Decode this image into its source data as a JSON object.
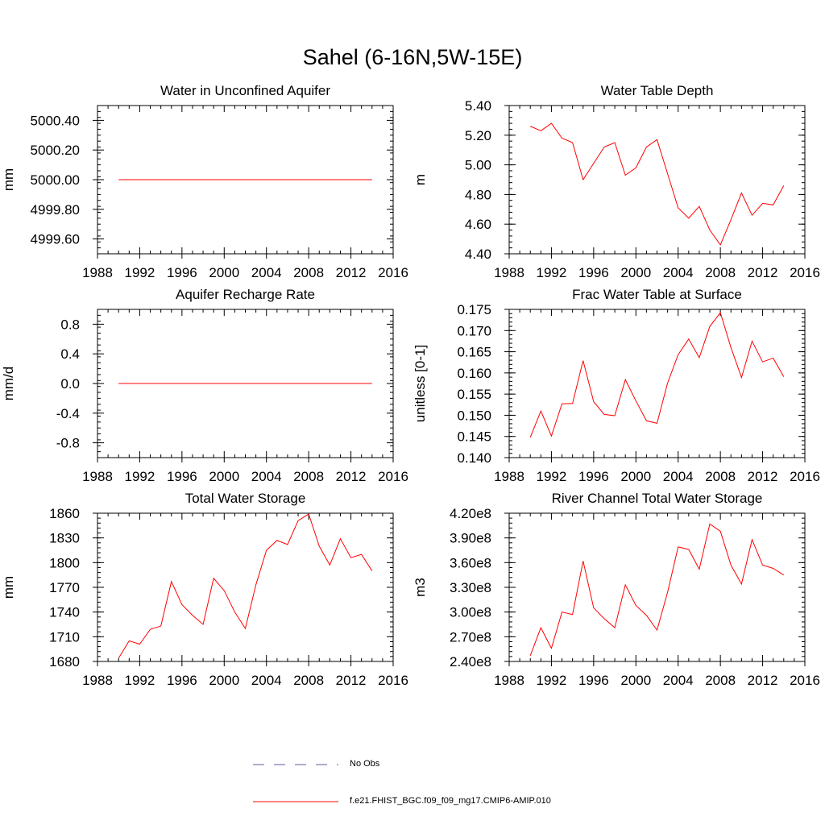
{
  "title": "Sahel (6-16N,5W-15E)",
  "colors": {
    "model": "#ff0000",
    "obs": "#5a5aa0",
    "axis": "#000000"
  },
  "legend": {
    "obs_label": "No Obs",
    "model_label": "f.e21.FHIST_BGC.f09_f09_mg17.CMIP6-AMIP.010"
  },
  "chart_data": [
    {
      "type": "line",
      "title": "Water in Unconfined Aquifer",
      "ylabel": "mm",
      "xlim": [
        1988,
        2016
      ],
      "xticks": [
        "1988",
        "1992",
        "1996",
        "2000",
        "2004",
        "2008",
        "2012",
        "2016"
      ],
      "ylim": [
        4999.5,
        5000.5
      ],
      "yticks": [
        4999.6,
        4999.8,
        5000.0,
        5000.2,
        5000.4
      ],
      "ytick_labels": [
        "4999.60",
        "4999.80",
        "5000.00",
        "5000.20",
        "5000.40"
      ],
      "x": [
        1990,
        1991,
        1992,
        1993,
        1994,
        1995,
        1996,
        1997,
        1998,
        1999,
        2000,
        2001,
        2002,
        2003,
        2004,
        2005,
        2006,
        2007,
        2008,
        2009,
        2010,
        2011,
        2012,
        2013,
        2014
      ],
      "series": [
        {
          "values": [
            5000,
            5000,
            5000,
            5000,
            5000,
            5000,
            5000,
            5000,
            5000,
            5000,
            5000,
            5000,
            5000,
            5000,
            5000,
            5000,
            5000,
            5000,
            5000,
            5000,
            5000,
            5000,
            5000,
            5000,
            5000
          ]
        }
      ]
    },
    {
      "type": "line",
      "title": "Water Table Depth",
      "ylabel": "m",
      "xlim": [
        1988,
        2016
      ],
      "xticks": [
        "1988",
        "1992",
        "1996",
        "2000",
        "2004",
        "2008",
        "2012",
        "2016"
      ],
      "ylim": [
        4.4,
        5.4
      ],
      "yticks": [
        4.4,
        4.6,
        4.8,
        5.0,
        5.2,
        5.4
      ],
      "ytick_labels": [
        "4.40",
        "4.60",
        "4.80",
        "5.00",
        "5.20",
        "5.40"
      ],
      "x": [
        1990,
        1991,
        1992,
        1993,
        1994,
        1995,
        1996,
        1997,
        1998,
        1999,
        2000,
        2001,
        2002,
        2003,
        2004,
        2005,
        2006,
        2007,
        2008,
        2009,
        2010,
        2011,
        2012,
        2013,
        2014
      ],
      "series": [
        {
          "values": [
            5.26,
            5.23,
            5.28,
            5.18,
            5.15,
            4.9,
            5.01,
            5.12,
            5.15,
            4.93,
            4.98,
            5.12,
            5.17,
            4.94,
            4.71,
            4.64,
            4.72,
            4.56,
            4.46,
            4.63,
            4.81,
            4.66,
            4.74,
            4.73,
            4.86
          ]
        }
      ]
    },
    {
      "type": "line",
      "title": "Aquifer Recharge Rate",
      "ylabel": "mm/d",
      "xlim": [
        1988,
        2016
      ],
      "xticks": [
        "1988",
        "1992",
        "1996",
        "2000",
        "2004",
        "2008",
        "2012",
        "2016"
      ],
      "ylim": [
        -1.0,
        1.0
      ],
      "yticks": [
        -0.8,
        -0.4,
        0.0,
        0.4,
        0.8
      ],
      "ytick_labels": [
        "-0.8",
        "-0.4",
        "0.0",
        "0.4",
        "0.8"
      ],
      "x": [
        1990,
        1991,
        1992,
        1993,
        1994,
        1995,
        1996,
        1997,
        1998,
        1999,
        2000,
        2001,
        2002,
        2003,
        2004,
        2005,
        2006,
        2007,
        2008,
        2009,
        2010,
        2011,
        2012,
        2013,
        2014
      ],
      "series": [
        {
          "values": [
            0,
            0,
            0,
            0,
            0,
            0,
            0,
            0,
            0,
            0,
            0,
            0,
            0,
            0,
            0,
            0,
            0,
            0,
            0,
            0,
            0,
            0,
            0,
            0,
            0
          ]
        }
      ]
    },
    {
      "type": "line",
      "title": "Frac Water Table at Surface",
      "ylabel": "unitless [0-1]",
      "xlim": [
        1988,
        2016
      ],
      "xticks": [
        "1988",
        "1992",
        "1996",
        "2000",
        "2004",
        "2008",
        "2012",
        "2016"
      ],
      "ylim": [
        0.14,
        0.175
      ],
      "yticks": [
        0.14,
        0.145,
        0.15,
        0.155,
        0.16,
        0.165,
        0.17,
        0.175
      ],
      "ytick_labels": [
        "0.140",
        "0.145",
        "0.150",
        "0.155",
        "0.160",
        "0.165",
        "0.170",
        "0.175"
      ],
      "x": [
        1990,
        1991,
        1992,
        1993,
        1994,
        1995,
        1996,
        1997,
        1998,
        1999,
        2000,
        2001,
        2002,
        2003,
        2004,
        2005,
        2006,
        2007,
        2008,
        2009,
        2010,
        2011,
        2012,
        2013,
        2014
      ],
      "series": [
        {
          "values": [
            0.1448,
            0.151,
            0.1451,
            0.1527,
            0.1528,
            0.1629,
            0.1532,
            0.1502,
            0.1499,
            0.1584,
            0.1534,
            0.1487,
            0.1481,
            0.1576,
            0.1643,
            0.168,
            0.1636,
            0.171,
            0.1742,
            0.166,
            0.1589,
            0.1675,
            0.1626,
            0.1635,
            0.1591
          ]
        }
      ]
    },
    {
      "type": "line",
      "title": "Total Water Storage",
      "ylabel": "mm",
      "xlim": [
        1988,
        2016
      ],
      "xticks": [
        "1988",
        "1992",
        "1996",
        "2000",
        "2004",
        "2008",
        "2012",
        "2016"
      ],
      "ylim": [
        1680,
        1860
      ],
      "yticks": [
        1680,
        1710,
        1740,
        1770,
        1800,
        1830,
        1860
      ],
      "ytick_labels": [
        "1680",
        "1710",
        "1740",
        "1770",
        "1800",
        "1830",
        "1860"
      ],
      "x": [
        1990,
        1991,
        1992,
        1993,
        1994,
        1995,
        1996,
        1997,
        1998,
        1999,
        2000,
        2001,
        2002,
        2003,
        2004,
        2005,
        2006,
        2007,
        2008,
        2009,
        2010,
        2011,
        2012,
        2013,
        2014
      ],
      "series": [
        {
          "values": [
            1684,
            1705,
            1701,
            1719,
            1723,
            1777,
            1749,
            1736,
            1725,
            1781,
            1766,
            1740,
            1720,
            1773,
            1815,
            1827,
            1822,
            1851,
            1859,
            1820,
            1797,
            1829,
            1806,
            1810,
            1790
          ]
        }
      ]
    },
    {
      "type": "line",
      "title": "River Channel Total Water Storage",
      "ylabel": "m3",
      "xlim": [
        1988,
        2016
      ],
      "xticks": [
        "1988",
        "1992",
        "1996",
        "2000",
        "2004",
        "2008",
        "2012",
        "2016"
      ],
      "ylim": [
        240000000.0,
        420000000.0
      ],
      "yticks": [
        240000000.0,
        270000000.0,
        300000000.0,
        330000000.0,
        360000000.0,
        390000000.0,
        420000000.0
      ],
      "ytick_labels": [
        "2.40e8",
        "2.70e8",
        "3.00e8",
        "3.30e8",
        "3.60e8",
        "3.90e8",
        "4.20e8"
      ],
      "x": [
        1990,
        1991,
        1992,
        1993,
        1994,
        1995,
        1996,
        1997,
        1998,
        1999,
        2000,
        2001,
        2002,
        2003,
        2004,
        2005,
        2006,
        2007,
        2008,
        2009,
        2010,
        2011,
        2012,
        2013,
        2014
      ],
      "series": [
        {
          "values": [
            247000000.0,
            281000000.0,
            256000000.0,
            300000000.0,
            297000000.0,
            362000000.0,
            305000000.0,
            292000000.0,
            281000000.0,
            333000000.0,
            308000000.0,
            296000000.0,
            278000000.0,
            324000000.0,
            379000000.0,
            376000000.0,
            352000000.0,
            407000000.0,
            398000000.0,
            357000000.0,
            334000000.0,
            388000000.0,
            357000000.0,
            353000000.0,
            345000000.0
          ]
        }
      ]
    }
  ]
}
